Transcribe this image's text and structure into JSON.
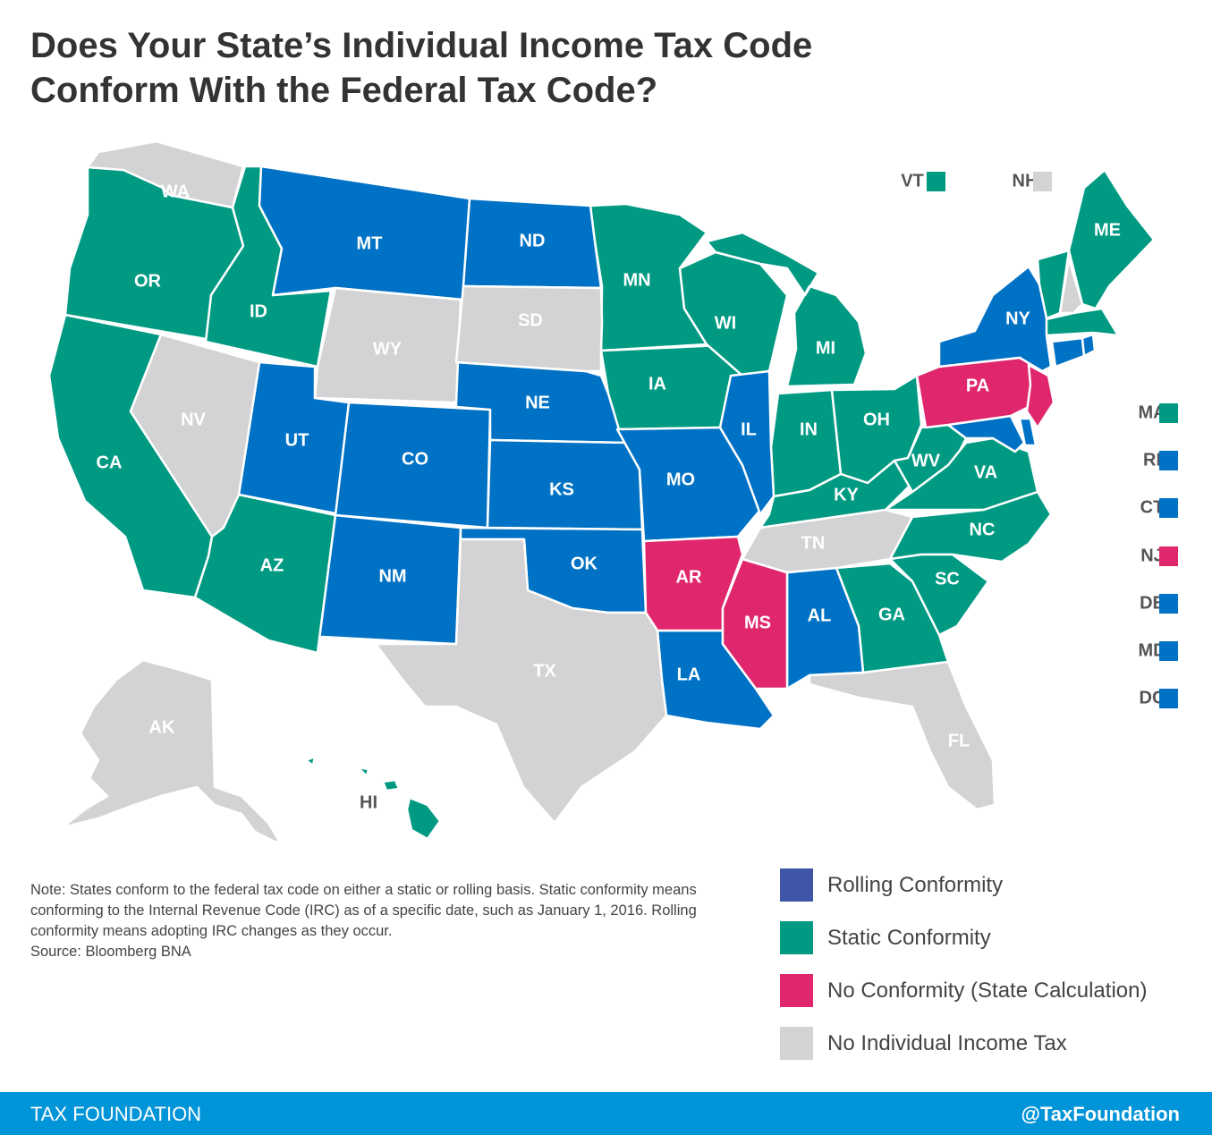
{
  "title": "Does Your State’s Individual Income Tax Code Conform With the Federal Tax Code?",
  "colors": {
    "rolling": "#0072c6",
    "static": "#009a83",
    "none": "#e0276e",
    "no_tax": "#d3d3d5",
    "rolling_swatch": "#3e55a8"
  },
  "states": {
    "WA": "WA",
    "OR": "OR",
    "CA": "CA",
    "ID": "ID",
    "NV": "NV",
    "MT": "MT",
    "WY": "WY",
    "UT": "UT",
    "AZ": "AZ",
    "CO": "CO",
    "NM": "NM",
    "ND": "ND",
    "SD": "SD",
    "NE": "NE",
    "KS": "KS",
    "OK": "OK",
    "TX": "TX",
    "MN": "MN",
    "IA": "IA",
    "MO": "MO",
    "AR": "AR",
    "LA": "LA",
    "WI": "WI",
    "IL": "IL",
    "MS": "MS",
    "MI": "MI",
    "IN": "IN",
    "KY": "KY",
    "TN": "TN",
    "AL": "AL",
    "OH": "OH",
    "GA": "GA",
    "FL": "FL",
    "SC": "SC",
    "NC": "NC",
    "VA": "VA",
    "WV": "WV",
    "PA": "PA",
    "NY": "NY",
    "ME": "ME",
    "AK": "AK",
    "HI": "HI"
  },
  "small_states": [
    {
      "abbr": "VT",
      "conformity": "static"
    },
    {
      "abbr": "NH",
      "conformity": "no_tax"
    },
    {
      "abbr": "MA",
      "conformity": "static"
    },
    {
      "abbr": "RI",
      "conformity": "rolling"
    },
    {
      "abbr": "CT",
      "conformity": "rolling"
    },
    {
      "abbr": "NJ",
      "conformity": "none"
    },
    {
      "abbr": "DE",
      "conformity": "rolling"
    },
    {
      "abbr": "MD",
      "conformity": "rolling"
    },
    {
      "abbr": "DC",
      "conformity": "rolling"
    }
  ],
  "note": "Note: States conform to the federal tax code on either a static or rolling basis. Static conformity means conforming to the Internal Revenue Code (IRC) as of a specific date, such as January 1, 2016. Rolling conformity means adopting IRC changes as they occur.",
  "source": "Source:  Bloomberg BNA",
  "legend": [
    {
      "key": "rolling",
      "label": "Rolling Conformity"
    },
    {
      "key": "static",
      "label": "Static Conformity"
    },
    {
      "key": "none",
      "label": "No Conformity (State Calculation)"
    },
    {
      "key": "no_tax",
      "label": "No Individual Income Tax"
    }
  ],
  "footer": {
    "brand": "TAX FOUNDATION",
    "handle": "@TaxFoundation"
  }
}
